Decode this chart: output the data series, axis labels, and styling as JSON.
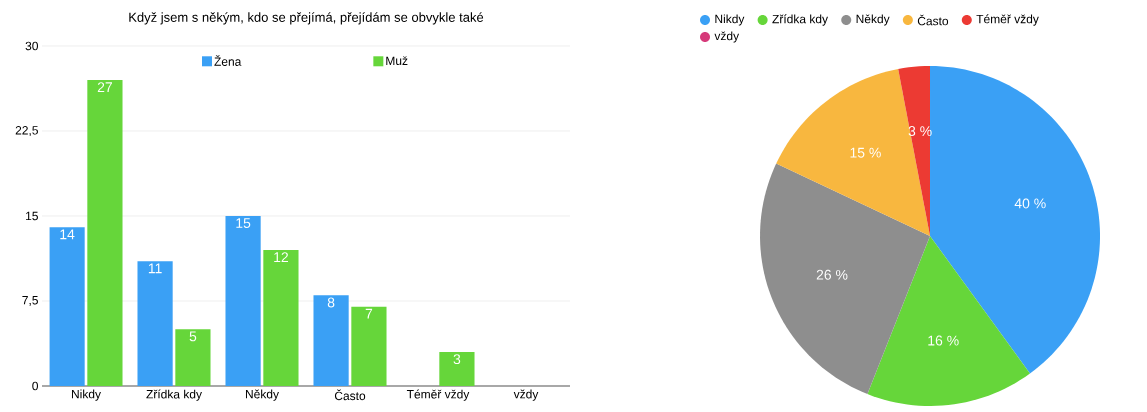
{
  "chart_data": [
    {
      "type": "bar",
      "title": "Když jsem s někým, kdo se přejímá, přejídám se obvykle také",
      "categories": [
        "Nikdy",
        "Zřídka kdy",
        "Někdy",
        "Často",
        "Téměř vždy",
        "vždy"
      ],
      "series": [
        {
          "name": "Žena",
          "color": "#3aa0f5",
          "values": [
            14,
            11,
            15,
            8,
            0,
            0
          ],
          "value_labels": [
            "14",
            "11",
            "15",
            "8",
            null,
            null
          ]
        },
        {
          "name": "Muž",
          "color": "#66d63a",
          "values": [
            27,
            5,
            12,
            7,
            3,
            0
          ],
          "value_labels": [
            "27",
            "5",
            "12",
            "7",
            "3",
            null
          ]
        }
      ],
      "ylim": [
        0,
        30
      ],
      "yticks": [
        0,
        {
          "value": 7.5,
          "label": "7,5"
        },
        15,
        {
          "value": 22.5,
          "label": "22,5"
        },
        30
      ],
      "grid": "y",
      "legend": "top"
    },
    {
      "type": "pie",
      "categories": [
        "Nikdy",
        "Zřídka kdy",
        "Někdy",
        "Často",
        "Téměř vždy",
        "vždy"
      ],
      "values": [
        40,
        16,
        26,
        15,
        3,
        0
      ],
      "colors": [
        "#3aa0f5",
        "#66d63a",
        "#8e8e8e",
        "#f8b73f",
        "#ec3a33",
        "#d63a7a"
      ],
      "value_labels": [
        "40 %",
        "16 %",
        "26 %",
        "15 %",
        "3 %",
        null
      ],
      "legend": "top"
    }
  ]
}
